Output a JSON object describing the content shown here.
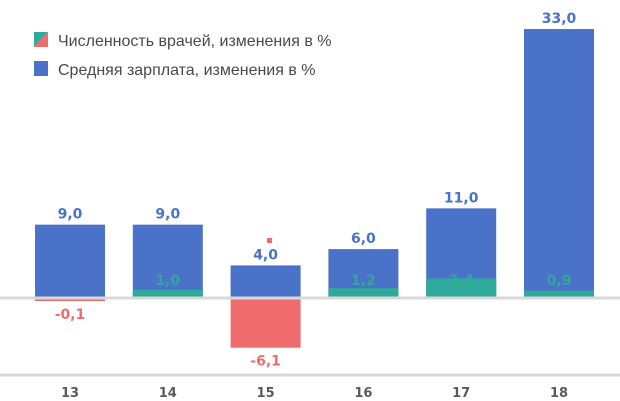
{
  "chart_data": {
    "type": "bar",
    "stacked": "overlay",
    "categories": [
      "13",
      "14",
      "15",
      "16",
      "17",
      "18"
    ],
    "series": [
      {
        "name": "Численность врачей, изменения в %",
        "values": [
          -0.1,
          1.0,
          -6.1,
          1.2,
          2.4,
          0.9
        ],
        "labels": [
          "-0,1",
          "1,0",
          "-6,1",
          "1,2",
          "2,4",
          "0,9"
        ]
      },
      {
        "name": "Средняя зарплата, изменения в %",
        "values": [
          9.0,
          9.0,
          4.0,
          6.0,
          11.0,
          33.0
        ],
        "labels": [
          "9,0",
          "9,0",
          "4,0",
          "6,0",
          "11,0",
          "33,0"
        ]
      }
    ],
    "colors": {
      "salary": "#4a72c8",
      "doctors_positive": "#2ea99a",
      "doctors_negative": "#f06b6e",
      "salary_label": "#4a72c8",
      "doctors_positive_label": "#2ea99a",
      "doctors_negative_label": "#f06b6e",
      "tick_label": "#5a5a5a",
      "axis_line": "#d8d8d8"
    },
    "legend": "top-left",
    "grid": false,
    "ylim": [
      -9,
      34
    ]
  }
}
